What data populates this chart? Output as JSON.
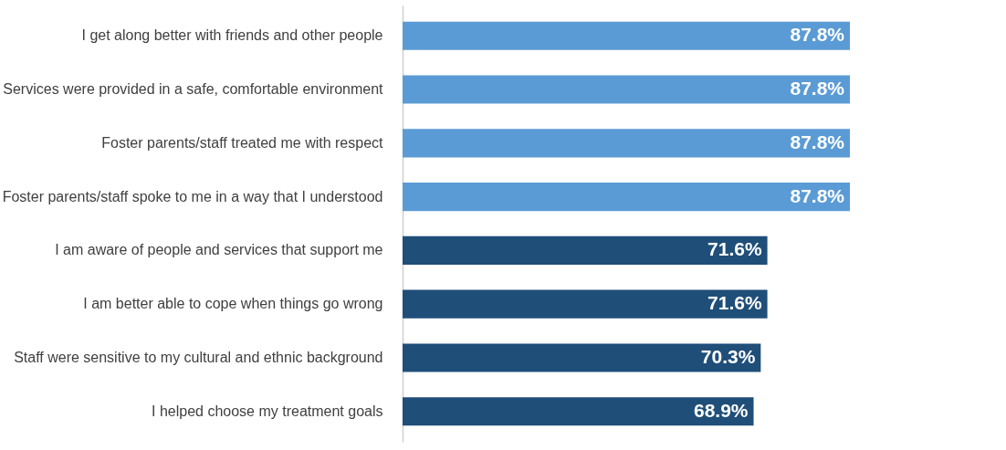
{
  "chart_data": {
    "type": "bar",
    "orientation": "horizontal",
    "tick_labels": "y",
    "categories": [
      "I get along better with friends and other people",
      "Services were provided in a safe, comfortable environment",
      "Foster parents/staff treated me with respect",
      "Foster parents/staff spoke to me in a way that I understood",
      "I am aware of people and services that support me",
      "I am better able to cope when things go wrong",
      "Staff were sensitive to my cultural and ethnic background",
      "I helped choose my treatment goals"
    ],
    "values": [
      87.8,
      87.8,
      87.8,
      87.8,
      71.6,
      71.6,
      70.3,
      68.9
    ],
    "colors": [
      "#5b9bd5",
      "#5b9bd5",
      "#5b9bd5",
      "#5b9bd5",
      "#1f4e79",
      "#1f4e79",
      "#1f4e79",
      "#1f4e79"
    ],
    "value_labels": [
      "87.8%",
      "87.8%",
      "87.8%",
      "87.8%",
      "71.6%",
      "71.6%",
      "70.3%",
      "68.9%"
    ]
  }
}
